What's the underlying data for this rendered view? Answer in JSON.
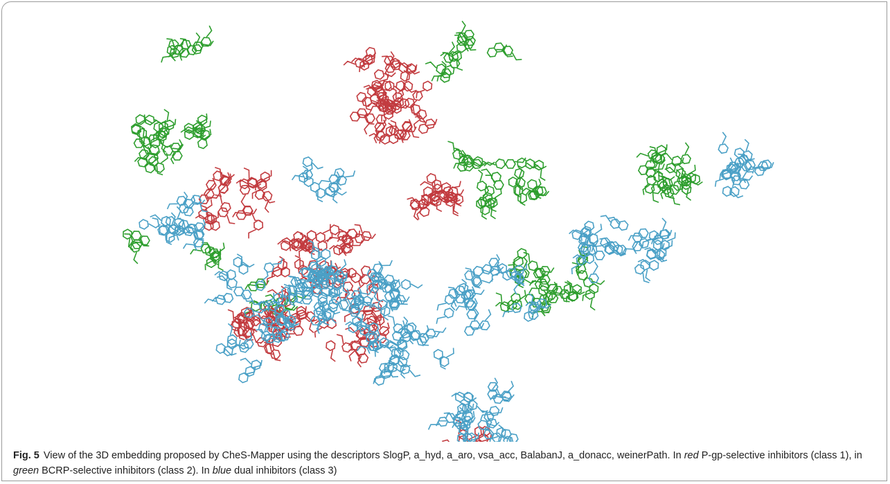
{
  "figure": {
    "label": "Fig. 5",
    "caption": [
      "View of the 3D embedding proposed by CheS-Mapper using the descriptors SlogP, a_hyd, a_aro, vsa_acc, BalabanJ, a_donacc, weinerPath. In ",
      "red",
      " P-gp-selective inhibitors (class 1), in ",
      "green",
      " BCRP-selective inhibitors (class 2). In ",
      "blue",
      " dual inhibitors (class 3)"
    ]
  }
}
